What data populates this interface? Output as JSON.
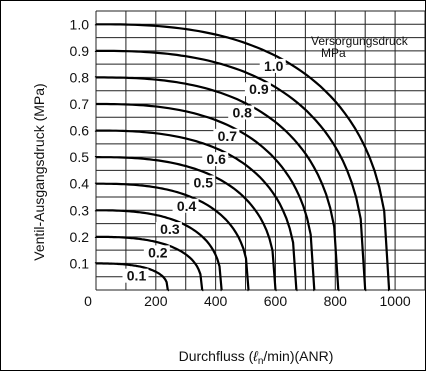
{
  "chart_data": {
    "type": "line",
    "xlabel": "Durchfluss (ℓn/min)(ANR)",
    "ylabel": "Ventil-Ausgangsdruck (MPa)",
    "xlim": [
      0,
      1100
    ],
    "ylim": [
      0,
      1.05
    ],
    "x_ticks": [
      "0",
      "200",
      "400",
      "600",
      "800",
      "1000"
    ],
    "y_ticks": [
      "0.1",
      "0.2",
      "0.3",
      "0.4",
      "0.5",
      "0.6",
      "0.7",
      "0.8",
      "0.9",
      "1.0"
    ],
    "grid": true,
    "annotation": {
      "title_line1": "Versorgungsdruck",
      "title_line2": "MPa"
    },
    "series": [
      {
        "name": "0.1",
        "max_flow": 240
      },
      {
        "name": "0.2",
        "max_flow": 355
      },
      {
        "name": "0.3",
        "max_flow": 420
      },
      {
        "name": "0.4",
        "max_flow": 510
      },
      {
        "name": "0.5",
        "max_flow": 600
      },
      {
        "name": "0.6",
        "max_flow": 670
      },
      {
        "name": "0.7",
        "max_flow": 730
      },
      {
        "name": "0.8",
        "max_flow": 810
      },
      {
        "name": "0.9",
        "max_flow": 900
      },
      {
        "name": "1.0",
        "max_flow": 980
      }
    ]
  }
}
